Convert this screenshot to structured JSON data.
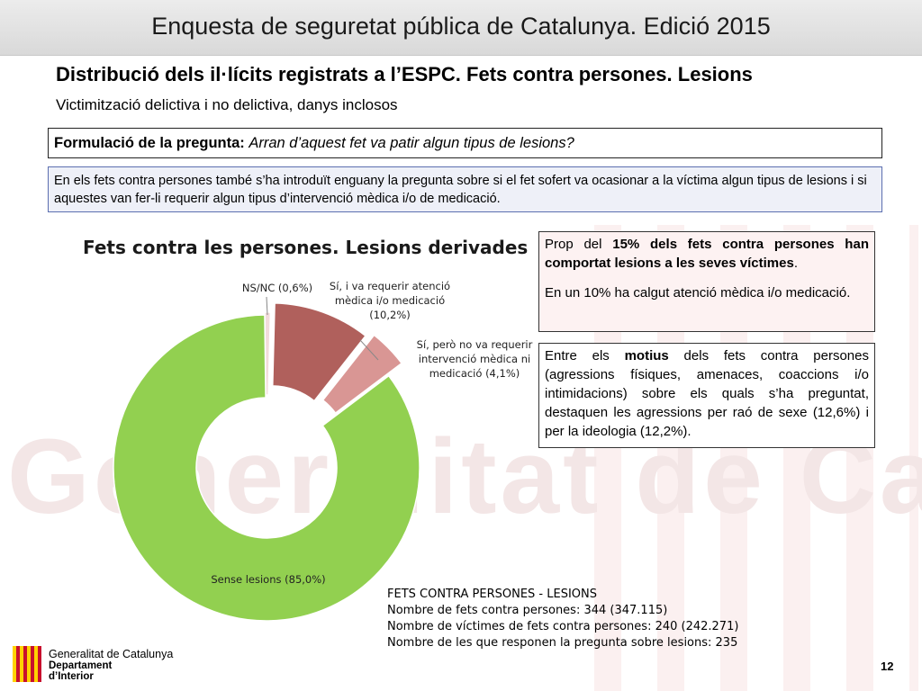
{
  "header": {
    "title": "Enquesta de seguretat pública de Catalunya. Edició 2015"
  },
  "slide": {
    "title": "Distribució dels il·lícits registrats a l’ESPC. Fets contra persones. Lesions",
    "subtitle": "Victimització delictiva i no delictiva, danys inclosos"
  },
  "question": {
    "label": "Formulació de la pregunta:",
    "text": "Arran d’aquest fet va patir algun tipus de lesions?"
  },
  "info": {
    "text": "En els fets contra persones també s’ha introduït enguany la pregunta sobre si el fet sofert va ocasionar a la víctima algun tipus de lesions i si aquestes van fer-li requerir algun tipus d’intervenció mèdica i/o de medicació."
  },
  "box_prop": {
    "p1_pre": "Prop del ",
    "p1_bold": "15% dels fets contra persones han comportat lesions a les seves víctimes",
    "p1_post": ".",
    "p2": "En un 10% ha calgut atenció mèdica i/o medicació."
  },
  "box_motius": {
    "pre": "Entre els ",
    "bold": "motius",
    "post": " dels fets contra persones (agressions físiques, amenaces, coaccions i/o intimidacions) sobre els quals s’ha preguntat, destaquen les agressions per raó de sexe (12,6%) i per la ideologia (12,2%)."
  },
  "chart_data": {
    "type": "pie",
    "title": "Fets contra les persones. Lesions derivades",
    "slices": [
      {
        "label": "NS/NC (0,6%)",
        "value": 0.6,
        "color": "#f2dcdb"
      },
      {
        "label": "Sí, i va requerir atenció mèdica i/o medicació (10,2%)",
        "value": 10.2,
        "color": "#b0605c"
      },
      {
        "label": "Sí, però no va requerir intervenció mèdica ni medicació (4,1%)",
        "value": 4.1,
        "color": "#d99694"
      },
      {
        "label": "Sense lesions (85,0%)",
        "value": 85.0,
        "color": "#92d050"
      }
    ],
    "exploded": true,
    "donut": true
  },
  "labels": {
    "nsnc": "NS/NC (0,6%)",
    "si_atencio_1": "Sí, i va requerir atenció",
    "si_atencio_2": "mèdica i/o medicació",
    "si_atencio_3": "(10,2%)",
    "si_no_1": "Sí, però no va requerir",
    "si_no_2": "intervenció mèdica ni",
    "si_no_3": "medicació (4,1%)",
    "sense": "Sense lesions (85,0%)"
  },
  "stats": {
    "l1": "FETS CONTRA PERSONES - LESIONS",
    "l2": "Nombre de fets contra persones: 344 (347.115)",
    "l3": "Nombre de víctimes de fets contra persones: 240 (242.271)",
    "l4": "Nombre de les que responen la pregunta sobre lesions: 235"
  },
  "footer": {
    "logo_line1": "Generalitat de Catalunya",
    "logo_line2": "Departament",
    "logo_line3": "d’Interior",
    "watermark": "Generalitat de Catalunya",
    "page_number": "12"
  }
}
